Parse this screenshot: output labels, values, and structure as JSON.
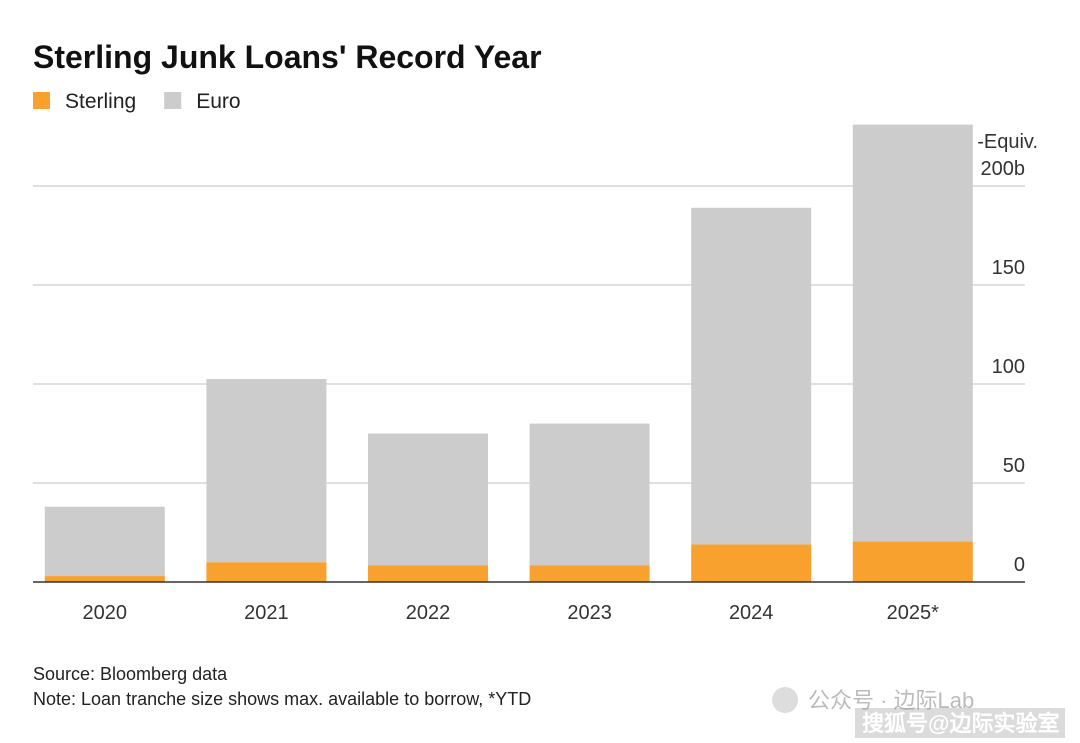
{
  "chart_data": {
    "type": "stacked-bar",
    "title": "Sterling Junk Loans' Record Year",
    "categories": [
      "2020",
      "2021",
      "2022",
      "2023",
      "2024",
      "2025*"
    ],
    "series": [
      {
        "name": "Sterling",
        "color": "#f9a12e",
        "values": [
          3,
          10,
          8.5,
          8.5,
          19,
          20.5
        ]
      },
      {
        "name": "Euro",
        "color": "#cccccc",
        "values": [
          35,
          92.5,
          66.5,
          71.5,
          170,
          210.5
        ]
      }
    ],
    "ylim": [
      0,
      232
    ],
    "yticks": [
      0,
      50,
      100,
      150,
      {
        "value": 200,
        "label": "200b"
      }
    ],
    "y_unit_label": "-Equiv.",
    "grid": true,
    "source": "Source: Bloomberg data",
    "note": "Note: Loan tranche size shows max. available to borrow, *YTD"
  },
  "watermark": [
    "公众号 · 边际Lab",
    "搜狐号@边际实验室"
  ]
}
